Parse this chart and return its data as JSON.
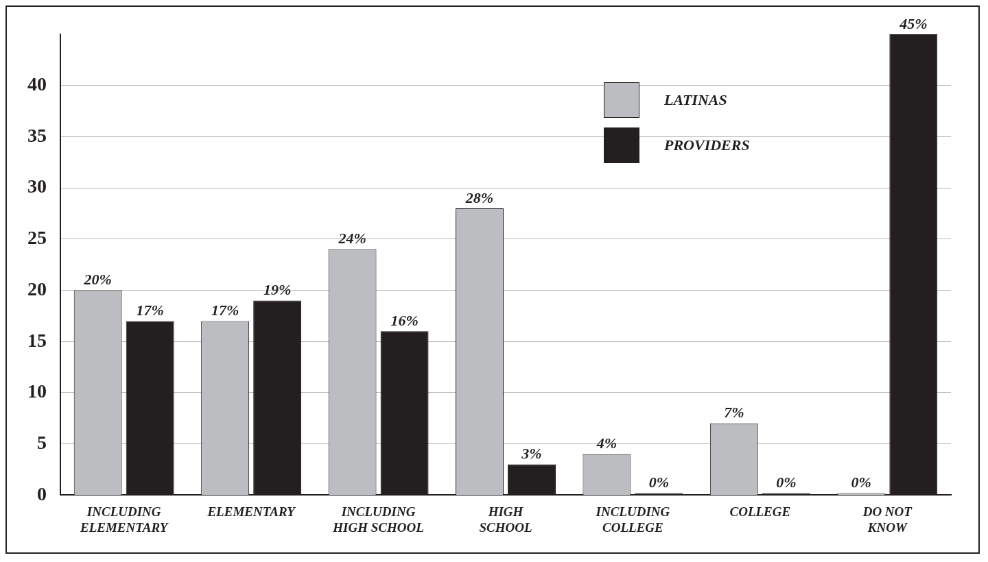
{
  "chart_data": {
    "type": "bar",
    "categories": [
      "INCLUDING\nELEMENTARY",
      "ELEMENTARY",
      "INCLUDING\nHIGH SCHOOL",
      "HIGH\nSCHOOL",
      "INCLUDING\nCOLLEGE",
      "COLLEGE",
      "DO NOT\nKNOW"
    ],
    "series": [
      {
        "name": "LATINAS",
        "color": "#bcbdc0",
        "values": [
          20,
          17,
          24,
          28,
          4,
          7,
          0
        ],
        "value_labels": [
          "20%",
          "17%",
          "24%",
          "28%",
          "4%",
          "7%",
          "0%"
        ]
      },
      {
        "name": "PROVIDERS",
        "color": "#231f20",
        "values": [
          17,
          19,
          16,
          3,
          0,
          0,
          45
        ],
        "value_labels": [
          "17%",
          "19%",
          "16%",
          "3%",
          "0%",
          "0%",
          "45%"
        ]
      }
    ],
    "ylim": [
      0,
      45
    ],
    "yticks": [
      0,
      5,
      10,
      15,
      20,
      25,
      30,
      35,
      40
    ],
    "grid": "y",
    "legend": "top right"
  }
}
